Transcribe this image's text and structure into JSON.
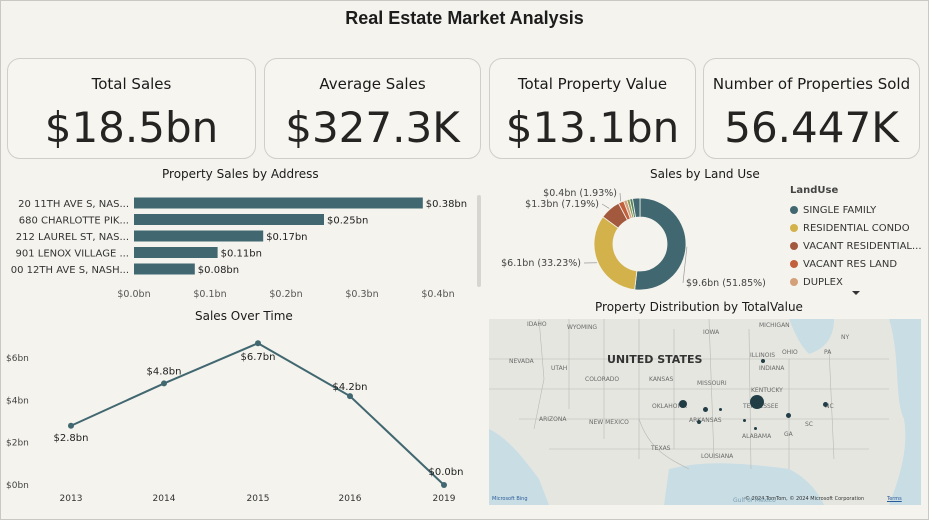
{
  "dashboard_title": "Real Estate Market Analysis",
  "kpis": [
    {
      "label": "Total Sales",
      "value": "$18.5bn"
    },
    {
      "label": "Average Sales",
      "value": "$327.3K"
    },
    {
      "label": "Total Property Value",
      "value": "$13.1bn"
    },
    {
      "label": "Number of Properties Sold",
      "value": "56.447K"
    }
  ],
  "charts": {
    "address": {
      "title": "Property Sales by Address"
    },
    "landuse": {
      "title": "Sales by Land Use",
      "legend_title": "LandUse"
    },
    "time": {
      "title": "Sales Over Time"
    },
    "map": {
      "title": "Property Distribution by TotalValue"
    }
  },
  "map": {
    "country": "UNITED STATES",
    "states": [
      "IDAHO",
      "WYOMING",
      "NEVADA",
      "UTAH",
      "COLORADO",
      "ARIZONA",
      "NEW MEXICO",
      "KANSAS",
      "OKLAHOMA",
      "TEXAS",
      "MISSOURI",
      "ARKANSAS",
      "LOUISIANA",
      "IOWA",
      "ILLINOIS",
      "INDIANA",
      "OHIO",
      "KENTUCKY",
      "TENNESSEE",
      "ALABAMA",
      "MICHIGAN",
      "NC",
      "SC",
      "GA",
      "PA",
      "NY"
    ],
    "attribution": "© 2024 TomTom, © 2024 Microsoft Corporation",
    "terms": "Terms",
    "brand": "Microsoft Bing",
    "bottom_text": "Gulf of Mexico"
  },
  "chart_data": [
    {
      "type": "bar",
      "orientation": "horizontal",
      "title": "Property Sales by Address",
      "categories": [
        "20 11TH AVE S, NAS...",
        "680 CHARLOTTE PIK...",
        "212 LAUREL ST, NAS...",
        "901 LENOX VILLAGE ...",
        "00 12TH AVE S, NASH..."
      ],
      "values": [
        0.38,
        0.25,
        0.17,
        0.11,
        0.08
      ],
      "data_labels": [
        "$0.38bn",
        "$0.25bn",
        "$0.17bn",
        "$0.11bn",
        "$0.08bn"
      ],
      "x_ticks": [
        "$0.0bn",
        "$0.1bn",
        "$0.2bn",
        "$0.3bn",
        "$0.4bn"
      ],
      "xlim": [
        0,
        0.4
      ],
      "color": "#416770"
    },
    {
      "type": "pie",
      "variant": "donut",
      "title": "Sales by Land Use",
      "legend_title": "LandUse",
      "legend": [
        "SINGLE FAMILY",
        "RESIDENTIAL CONDO",
        "VACANT RESIDENTIAL...",
        "VACANT RES LAND",
        "DUPLEX"
      ],
      "slices": [
        {
          "name": "SINGLE FAMILY",
          "value": 51.85,
          "label": "$9.6bn (51.85%)",
          "color": "#416770"
        },
        {
          "name": "RESIDENTIAL CONDO",
          "value": 33.23,
          "label": "$6.1bn (33.23%)",
          "color": "#d3b24c"
        },
        {
          "name": "VACANT RESIDENTIAL...",
          "value": 7.19,
          "label": "$1.3bn (7.19%)",
          "color": "#a3593d"
        },
        {
          "name": "VACANT RES LAND",
          "value": 1.93,
          "label": "$0.4bn (1.93%)",
          "color": "#c2603d"
        },
        {
          "name": "DUPLEX",
          "value": 1.2,
          "label": "",
          "color": "#d4a07a"
        },
        {
          "name": "",
          "value": 1.0,
          "label": "",
          "color": "#8a9a5b"
        },
        {
          "name": "",
          "value": 1.0,
          "label": "",
          "color": "#4f7f5a"
        },
        {
          "name": "",
          "value": 2.6,
          "label": "",
          "color": "#416770"
        }
      ]
    },
    {
      "type": "line",
      "title": "Sales Over Time",
      "categories": [
        "2013",
        "2014",
        "2015",
        "2016",
        "2019"
      ],
      "values": [
        2.8,
        4.8,
        6.7,
        4.2,
        0.0
      ],
      "data_labels": [
        "$2.8bn",
        "$4.8bn",
        "$6.7bn",
        "$4.2bn",
        "$0.0bn"
      ],
      "y_ticks": [
        "$0bn",
        "$2bn",
        "$4bn",
        "$6bn"
      ],
      "ylim": [
        0,
        6.9
      ],
      "color": "#416770"
    }
  ]
}
